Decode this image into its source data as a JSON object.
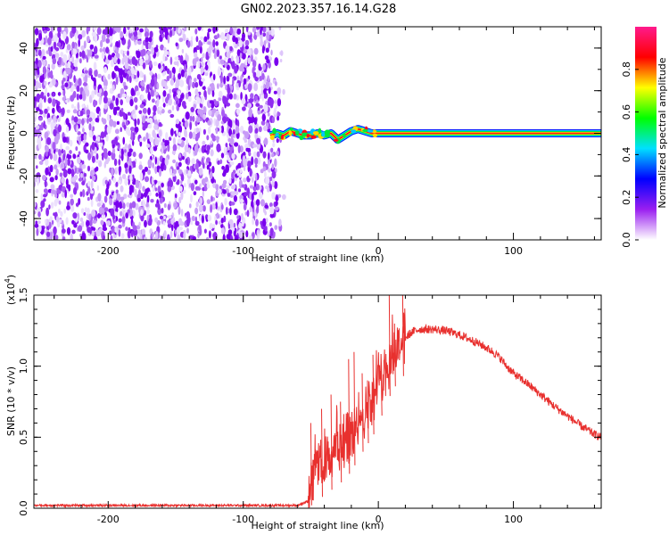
{
  "title": "GN02.2023.357.16.14.G28",
  "chart_data": [
    {
      "type": "heatmap",
      "name": "spectrogram",
      "xlabel": "Height of straight line (km)",
      "ylabel": "Frequency (Hz)",
      "xlim": [
        -255,
        165
      ],
      "ylim": [
        -50,
        50
      ],
      "x_ticks": [
        -200,
        -100,
        0,
        100
      ],
      "y_ticks": [
        -40,
        -20,
        0,
        20,
        40
      ],
      "noise_region_x": [
        -255,
        -75
      ],
      "signal_track": {
        "x": [
          -80,
          -75,
          -70,
          -65,
          -60,
          -55,
          -50,
          -45,
          -40,
          -35,
          -30,
          -25,
          -20,
          -15,
          -10,
          -5,
          0,
          50,
          100,
          165
        ],
        "y": [
          -1,
          0,
          -1,
          1,
          0,
          -1,
          -1,
          0,
          -1,
          0,
          -3,
          -1,
          1,
          2,
          1,
          0,
          0,
          0,
          0,
          0
        ]
      },
      "colorbar": {
        "label": "Normalized spectral amplitude",
        "ticks": [
          "0.0",
          "0.2",
          "0.4",
          "0.6",
          "0.8"
        ],
        "range": [
          0,
          1
        ],
        "colors": [
          "#ffffff",
          "#9a1ff0",
          "#0000ff",
          "#00e0ff",
          "#00ff00",
          "#ffff00",
          "#ff0000",
          "#ff1a8c"
        ]
      },
      "grid": false
    },
    {
      "type": "line",
      "name": "snr",
      "xlabel": "Height of straight line (km)",
      "ylabel": "SNR (10 * v/v)",
      "y_multiplier": "(x10",
      "y_multiplier_exp": "4",
      "y_multiplier_close": ")",
      "xlim": [
        -255,
        165
      ],
      "ylim": [
        0,
        1.5
      ],
      "x_ticks": [
        -200,
        -100,
        0,
        100
      ],
      "y_tick_labels": [
        "0.0",
        "0.5",
        "1.0",
        "1.5"
      ],
      "line_color": "#e8302e",
      "series": [
        {
          "x": [
            -255,
            -200,
            -150,
            -100,
            -60,
            -52,
            -48,
            -45,
            -40,
            -35,
            -30,
            -25,
            -20,
            -15,
            -10,
            -5,
            0,
            5,
            10,
            15,
            20,
            25,
            30,
            40,
            50,
            60,
            70,
            80,
            85,
            90,
            95,
            100,
            110,
            120,
            130,
            140,
            150,
            160,
            165
          ],
          "y": [
            0.02,
            0.02,
            0.02,
            0.02,
            0.02,
            0.05,
            0.2,
            0.3,
            0.35,
            0.38,
            0.42,
            0.45,
            0.52,
            0.6,
            0.68,
            0.75,
            0.85,
            0.98,
            1.08,
            1.15,
            1.2,
            1.24,
            1.26,
            1.26,
            1.25,
            1.22,
            1.18,
            1.13,
            1.1,
            1.06,
            1.0,
            0.95,
            0.88,
            0.8,
            0.72,
            0.65,
            0.58,
            0.52,
            0.5
          ]
        }
      ],
      "spikes": {
        "x": [
          -50,
          -42,
          -35,
          -28,
          -22,
          -18,
          -12,
          -8,
          -4,
          2,
          8,
          12,
          18
        ],
        "y": [
          0.6,
          0.7,
          0.8,
          0.75,
          1.05,
          1.1,
          0.95,
          0.9,
          1.08,
          1.0,
          1.55,
          1.3,
          1.5
        ]
      },
      "grid": false
    }
  ]
}
